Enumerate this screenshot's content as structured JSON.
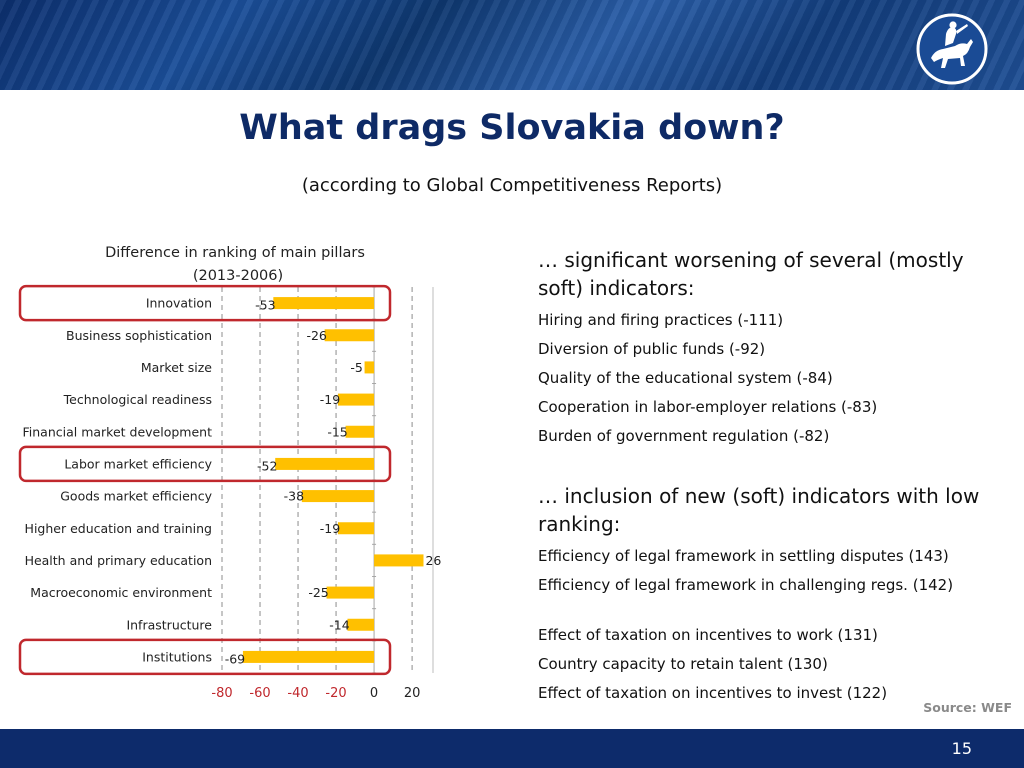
{
  "header": {
    "title": "What drags Slovakia down?",
    "subtitle": "(according to Global Competitiveness Reports)"
  },
  "chart_data": {
    "type": "bar",
    "orientation": "horizontal",
    "title_line1": "Difference in ranking of main pillars",
    "title_line2": "(2013-2006)",
    "categories": [
      "Innovation",
      "Business sophistication",
      "Market size",
      "Technological readiness",
      "Financial market development",
      "Labor market efficiency",
      "Goods market efficiency",
      "Higher education and training",
      "Health and primary education",
      "Macroeconomic environment",
      "Infrastructure",
      "Institutions"
    ],
    "values": [
      -53,
      -26,
      -5,
      -19,
      -15,
      -52,
      -38,
      -19,
      26,
      -25,
      -14,
      -69
    ],
    "highlighted": [
      "Innovation",
      "Labor market efficiency",
      "Institutions"
    ],
    "xlim": [
      -80,
      31
    ],
    "xticks": [
      -80,
      -60,
      -40,
      -20,
      0,
      20
    ],
    "bar_color": "#ffc000",
    "highlight_color": "#c0282d",
    "negative_tick_color": "#c0282d"
  },
  "right": {
    "heading1": "… significant worsening of several (mostly soft) indicators:",
    "list1": [
      "Hiring and firing practices (-111)",
      "Diversion of public funds (-92)",
      "Quality of the educational system (-84)",
      "Cooperation in labor-employer relations (-83)",
      "Burden of government regulation (-82)"
    ],
    "heading2": "… inclusion of new (soft) indicators with low ranking:",
    "list2": [
      "Efficiency of legal framework in settling disputes (143)",
      "Efficiency of legal framework in challenging regs. (142)",
      "Effect of taxation on incentives to work (131)",
      "Country capacity to retain talent (130)",
      "Effect of taxation on incentives to invest (122)"
    ]
  },
  "source": "Source: WEF",
  "footer": {
    "page_number": "15"
  }
}
